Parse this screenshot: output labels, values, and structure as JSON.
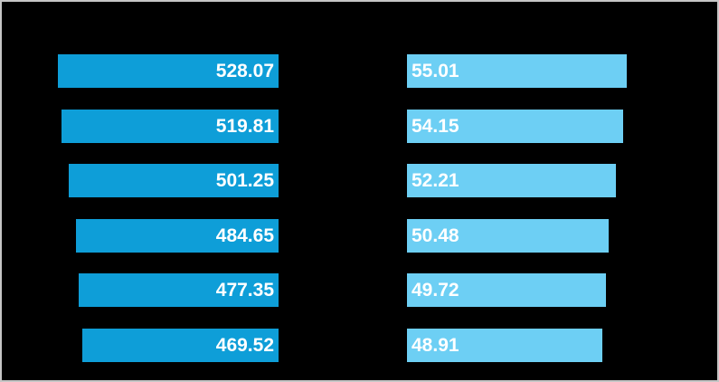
{
  "chart_data": {
    "type": "bar",
    "orientation": "horizontal",
    "layout": "tornado-two-panel",
    "title": "",
    "grid": false,
    "axes_visible": false,
    "category_labels_visible": false,
    "background_color": "#000000",
    "frame_border_color": "#c6c6c6",
    "value_label_color": "#ffffff",
    "rows": 6,
    "series": [
      {
        "name": "left-series",
        "side": "left",
        "anchor": "right",
        "bars_grow": "leftward",
        "bar_color": "#0e9ed8",
        "label_align": "right",
        "values": [
          528.07,
          519.81,
          501.25,
          484.65,
          477.35,
          469.52
        ],
        "labels": [
          "528.07",
          "519.81",
          "501.25",
          "484.65",
          "477.35",
          "469.52"
        ]
      },
      {
        "name": "right-series",
        "side": "right",
        "anchor": "left",
        "bars_grow": "rightward",
        "bar_color": "#6dcff4",
        "label_align": "left",
        "values": [
          55.01,
          54.15,
          52.21,
          50.48,
          49.72,
          48.91
        ],
        "labels": [
          "55.01",
          "54.15",
          "52.21",
          "50.48",
          "49.72",
          "48.91"
        ]
      }
    ]
  }
}
